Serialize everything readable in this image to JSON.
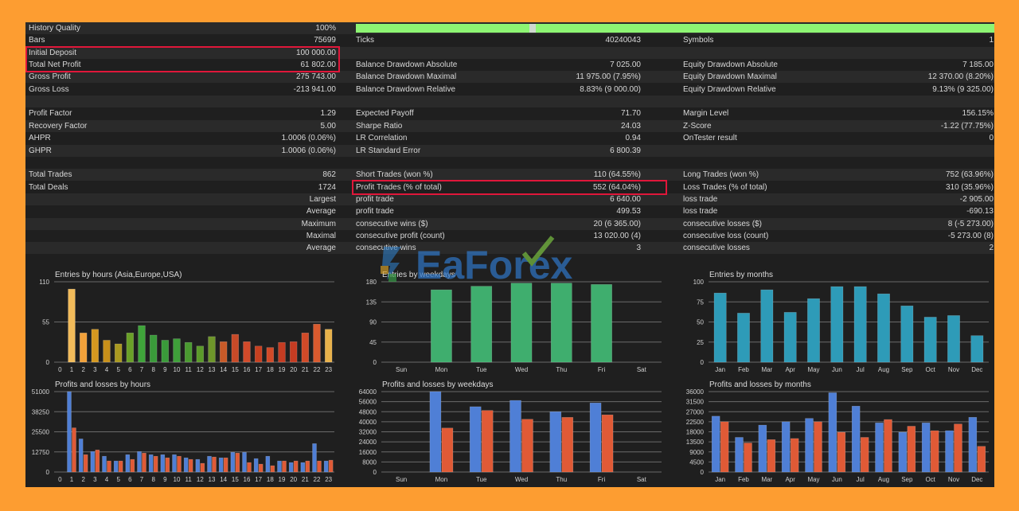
{
  "stats": {
    "rows": [
      {
        "c1l": "History Quality",
        "c1v": "100%"
      },
      {
        "c1l": "Bars",
        "c1v": "75699",
        "c2l": "Ticks",
        "c2v": "40240043",
        "c3l": "Symbols",
        "c3v": "1"
      },
      {
        "c1l": "Initial Deposit",
        "c1v": "100 000.00"
      },
      {
        "c1l": "Total Net Profit",
        "c1v": "61 802.00",
        "c2l": "Balance Drawdown Absolute",
        "c2v": "7 025.00",
        "c3l": "Equity Drawdown Absolute",
        "c3v": "7 185.00"
      },
      {
        "c1l": "Gross Profit",
        "c1v": "275 743.00",
        "c2l": "Balance Drawdown Maximal",
        "c2v": "11 975.00 (7.95%)",
        "c3l": "Equity Drawdown Maximal",
        "c3v": "12 370.00 (8.20%)"
      },
      {
        "c1l": "Gross Loss",
        "c1v": "-213 941.00",
        "c2l": "Balance Drawdown Relative",
        "c2v": "8.83% (9 000.00)",
        "c3l": "Equity Drawdown Relative",
        "c3v": "9.13% (9 325.00)"
      },
      {},
      {
        "c1l": "Profit Factor",
        "c1v": "1.29",
        "c2l": "Expected Payoff",
        "c2v": "71.70",
        "c3l": "Margin Level",
        "c3v": "156.15%"
      },
      {
        "c1l": "Recovery Factor",
        "c1v": "5.00",
        "c2l": "Sharpe Ratio",
        "c2v": "24.03",
        "c3l": "Z-Score",
        "c3v": "-1.22 (77.75%)"
      },
      {
        "c1l": "AHPR",
        "c1v": "1.0006 (0.06%)",
        "c2l": "LR Correlation",
        "c2v": "0.94",
        "c3l": "OnTester result",
        "c3v": "0"
      },
      {
        "c1l": "GHPR",
        "c1v": "1.0006 (0.06%)",
        "c2l": "LR Standard Error",
        "c2v": "6 800.39"
      },
      {},
      {
        "c1l": "Total Trades",
        "c1v": "862",
        "c2l": "Short Trades (won %)",
        "c2v": "110 (64.55%)",
        "c3l": "Long Trades (won %)",
        "c3v": "752 (63.96%)"
      },
      {
        "c1l": "Total Deals",
        "c1v": "1724",
        "c2l": "Profit Trades (% of total)",
        "c2v": "552 (64.04%)",
        "c3l": "Loss Trades (% of total)",
        "c3v": "310 (35.96%)"
      },
      {
        "c1r": "Largest",
        "c2l": "profit trade",
        "c2v": "6 640.00",
        "c3l": "loss trade",
        "c3v": "-2 905.00"
      },
      {
        "c1r": "Average",
        "c2l": "profit trade",
        "c2v": "499.53",
        "c3l": "loss trade",
        "c3v": "-690.13"
      },
      {
        "c1r": "Maximum",
        "c2l": "consecutive wins ($)",
        "c2v": "20 (6 365.00)",
        "c3l": "consecutive losses ($)",
        "c3v": "8 (-5 273.00)"
      },
      {
        "c1r": "Maximal",
        "c2l": "consecutive profit (count)",
        "c2v": "13 020.00 (4)",
        "c3l": "consecutive loss (count)",
        "c3v": "-5 273.00 (8)"
      },
      {
        "c1r": "Average",
        "c2l": "consecutive wins",
        "c2v": "3",
        "c3l": "consecutive losses",
        "c3v": "2"
      }
    ]
  },
  "watermark": {
    "text": "EaForex"
  },
  "chart_data": [
    {
      "type": "bar",
      "title": "Entries by hours (Asia,Europe,USA)",
      "categories": [
        "0",
        "1",
        "2",
        "3",
        "4",
        "5",
        "6",
        "7",
        "8",
        "9",
        "10",
        "11",
        "12",
        "13",
        "14",
        "15",
        "16",
        "17",
        "18",
        "19",
        "20",
        "21",
        "22",
        "23"
      ],
      "values": [
        0,
        100,
        40,
        45,
        30,
        25,
        40,
        50,
        37,
        30,
        32,
        27,
        22,
        35,
        28,
        38,
        28,
        22,
        20,
        27,
        28,
        40,
        52,
        45
      ],
      "ylim": [
        0,
        110
      ],
      "yticks": [
        "0",
        "55",
        "110"
      ],
      "colors": [
        "#ffd27a",
        "#f2bb5a",
        "#f2a13a",
        "#d59820",
        "#c8901a",
        "#a99820",
        "#6aa028",
        "#3fa43a",
        "#3a9a3a",
        "#3a9a3a",
        "#3fa03a",
        "#4a9a30",
        "#5b9a2a",
        "#6e962a",
        "#c85a28",
        "#c74a28",
        "#d24a2a",
        "#c74020",
        "#d24a28",
        "#c53c22",
        "#c53c22",
        "#d04a28",
        "#d95a2e",
        "#e8b14a"
      ]
    },
    {
      "type": "bar",
      "title": "Entries by weekdays",
      "categories": [
        "Sun",
        "Mon",
        "Tue",
        "Wed",
        "Thu",
        "Fri",
        "Sat"
      ],
      "values": [
        0,
        162,
        170,
        177,
        177,
        174,
        0
      ],
      "ylim": [
        0,
        180
      ],
      "yticks": [
        "0",
        "45",
        "90",
        "135",
        "180"
      ],
      "color": "#3fae6e"
    },
    {
      "type": "bar",
      "title": "Entries by months",
      "categories": [
        "Jan",
        "Feb",
        "Mar",
        "Apr",
        "May",
        "Jun",
        "Jul",
        "Aug",
        "Sep",
        "Oct",
        "Nov",
        "Dec"
      ],
      "values": [
        86,
        61,
        90,
        62,
        79,
        94,
        94,
        85,
        70,
        56,
        58,
        33
      ],
      "ylim": [
        0,
        100
      ],
      "yticks": [
        "0",
        "25",
        "50",
        "75",
        "100"
      ],
      "color": "#2e9bb8"
    },
    {
      "type": "bar",
      "title": "Profits and losses by hours",
      "categories": [
        "0",
        "1",
        "2",
        "3",
        "4",
        "5",
        "6",
        "7",
        "8",
        "9",
        "10",
        "11",
        "12",
        "13",
        "14",
        "15",
        "16",
        "17",
        "18",
        "19",
        "20",
        "21",
        "22",
        "23"
      ],
      "series": [
        {
          "values": [
            0,
            51000,
            21000,
            13000,
            10000,
            7000,
            11000,
            13000,
            11000,
            11000,
            11000,
            9000,
            8000,
            10000,
            9000,
            12500,
            12500,
            8500,
            10000,
            7000,
            6000,
            6000,
            18000,
            7000
          ]
        },
        {
          "values": [
            0,
            28000,
            11000,
            14000,
            7000,
            7000,
            8000,
            12000,
            10000,
            9000,
            10000,
            8000,
            5500,
            9500,
            9000,
            12000,
            6000,
            5000,
            4000,
            7000,
            7000,
            7000,
            7000,
            7500
          ]
        }
      ],
      "ylim": [
        0,
        51000
      ],
      "yticks": [
        "0",
        "12750",
        "25500",
        "38250",
        "51000"
      ],
      "colors": [
        "#4f7fd6",
        "#e05a36"
      ]
    },
    {
      "type": "bar",
      "title": "Profits and losses by weekdays",
      "categories": [
        "Sun",
        "Mon",
        "Tue",
        "Wed",
        "Thu",
        "Fri",
        "Sat"
      ],
      "series": [
        {
          "values": [
            0,
            64000,
            52000,
            57000,
            48000,
            55000,
            0
          ]
        },
        {
          "values": [
            0,
            35000,
            49000,
            42000,
            43500,
            45500,
            0
          ]
        }
      ],
      "ylim": [
        0,
        64000
      ],
      "yticks": [
        "0",
        "8000",
        "16000",
        "24000",
        "32000",
        "40000",
        "48000",
        "56000",
        "64000"
      ],
      "colors": [
        "#4f7fd6",
        "#e05a36"
      ]
    },
    {
      "type": "bar",
      "title": "Profits and losses by months",
      "categories": [
        "Jan",
        "Feb",
        "Mar",
        "Apr",
        "May",
        "Jun",
        "Jul",
        "Aug",
        "Sep",
        "Oct",
        "Nov",
        "Dec"
      ],
      "series": [
        {
          "values": [
            25000,
            15500,
            21000,
            22500,
            24000,
            35500,
            29500,
            22000,
            17800,
            22000,
            18500,
            24500
          ]
        },
        {
          "values": [
            22500,
            13000,
            14500,
            15000,
            22500,
            17800,
            15500,
            23500,
            20500,
            18500,
            21500,
            11500
          ]
        }
      ],
      "ylim": [
        0,
        36000
      ],
      "yticks": [
        "0",
        "4500",
        "9000",
        "13500",
        "18000",
        "22500",
        "27000",
        "31500",
        "36000"
      ],
      "colors": [
        "#4f7fd6",
        "#e05a36"
      ]
    }
  ]
}
